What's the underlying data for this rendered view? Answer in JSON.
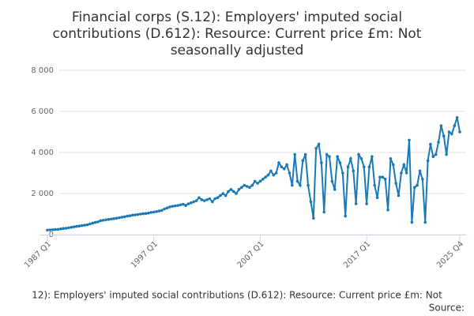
{
  "chart_data": {
    "type": "line",
    "title_lines": [
      "Financial corps (S.12): Employers' imputed social",
      "contributions (D.612): Resource: Current price £m: Not",
      "seasonally adjusted"
    ],
    "footer": "12): Employers' imputed social contributions (D.612): Resource: Current price £m: Not",
    "source": "Source:",
    "categories": [
      "1987 Q1",
      null,
      null,
      null,
      null,
      null,
      null,
      null,
      null,
      null,
      null,
      null,
      null,
      null,
      null,
      null,
      null,
      null,
      null,
      null,
      null,
      null,
      null,
      null,
      null,
      null,
      null,
      null,
      null,
      null,
      null,
      null,
      null,
      null,
      null,
      null,
      null,
      null,
      null,
      null,
      "1997 Q1",
      null,
      null,
      null,
      null,
      null,
      null,
      null,
      null,
      null,
      null,
      null,
      null,
      null,
      null,
      null,
      null,
      null,
      null,
      null,
      null,
      null,
      null,
      null,
      null,
      null,
      null,
      null,
      null,
      null,
      null,
      null,
      null,
      null,
      null,
      null,
      null,
      null,
      null,
      null,
      "2007 Q1",
      null,
      null,
      null,
      null,
      null,
      null,
      null,
      null,
      null,
      null,
      null,
      null,
      null,
      null,
      null,
      null,
      null,
      null,
      null,
      null,
      null,
      null,
      null,
      null,
      null,
      null,
      null,
      null,
      null,
      null,
      null,
      null,
      null,
      null,
      null,
      null,
      null,
      null,
      null,
      "2017 Q1",
      null,
      null,
      null,
      null,
      null,
      null,
      null,
      null,
      null,
      null,
      null,
      null,
      null,
      null,
      null,
      null,
      null,
      null,
      null,
      null,
      null,
      null,
      null,
      null,
      null,
      null,
      null,
      null,
      null,
      null,
      null,
      null,
      null,
      null,
      "2025 Q4"
    ],
    "series": [
      {
        "color": "#1a7ab5",
        "values": [
          220,
          230,
          240,
          250,
          260,
          280,
          300,
          310,
          330,
          360,
          380,
          400,
          420,
          440,
          460,
          480,
          520,
          560,
          600,
          620,
          680,
          700,
          720,
          740,
          760,
          780,
          800,
          820,
          850,
          870,
          900,
          920,
          950,
          960,
          980,
          1000,
          1020,
          1030,
          1050,
          1080,
          1100,
          1120,
          1150,
          1180,
          1250,
          1300,
          1350,
          1380,
          1400,
          1420,
          1450,
          1480,
          1420,
          1500,
          1550,
          1600,
          1650,
          1800,
          1700,
          1650,
          1700,
          1750,
          1600,
          1750,
          1800,
          1900,
          2000,
          1900,
          2100,
          2200,
          2100,
          2000,
          2200,
          2300,
          2400,
          2350,
          2300,
          2400,
          2600,
          2500,
          2600,
          2700,
          2800,
          2900,
          3100,
          2900,
          3000,
          3500,
          3300,
          3200,
          3400,
          3000,
          2400,
          3900,
          2600,
          2400,
          3600,
          3900,
          2400,
          1600,
          800,
          4200,
          4400,
          3500,
          1100,
          3900,
          3800,
          2600,
          2200,
          3800,
          3500,
          3000,
          900,
          3300,
          3700,
          3100,
          1500,
          3900,
          3700,
          3300,
          1500,
          3300,
          3800,
          2400,
          1800,
          2800,
          2800,
          2700,
          1200,
          3700,
          3400,
          2500,
          1900,
          3000,
          3400,
          3000,
          4600,
          600,
          2300,
          2400,
          3100,
          2700,
          600,
          3600,
          4400,
          3800,
          3900,
          4500,
          5300,
          4800,
          3900,
          5000,
          4900,
          5300,
          5700,
          5000
        ]
      }
    ],
    "ylim": [
      0,
      8000
    ],
    "yticks": [
      0,
      {
        "value": 2000,
        "label": "2 000"
      },
      {
        "value": 4000,
        "label": "4 000"
      },
      {
        "value": 6000,
        "label": "6 000"
      },
      {
        "value": 8000,
        "label": "8 000"
      }
    ],
    "grid": true
  }
}
